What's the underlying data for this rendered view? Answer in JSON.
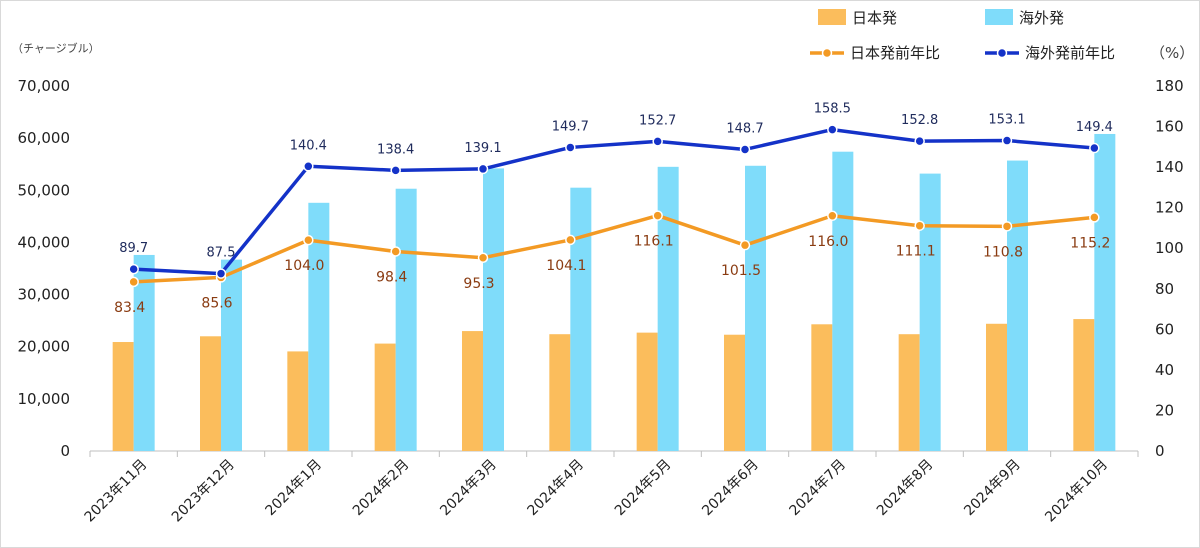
{
  "chart_data": {
    "type": "bar",
    "categories": [
      "2023年11月",
      "2023年12月",
      "2024年1月",
      "2024年2月",
      "2024年3月",
      "2024年4月",
      "2024年5月",
      "2024年6月",
      "2024年7月",
      "2024年8月",
      "2024年9月",
      "2024年10月"
    ],
    "left_axis": {
      "unit": "（チャージブル）",
      "ylim": [
        0,
        70000
      ],
      "ticks": [
        "0",
        "10,000",
        "20,000",
        "30,000",
        "40,000",
        "50,000",
        "60,000",
        "70,000"
      ],
      "tick_values": [
        0,
        10000,
        20000,
        30000,
        40000,
        50000,
        60000,
        70000
      ]
    },
    "right_axis": {
      "unit": "（%）",
      "ylim": [
        0,
        180
      ],
      "ticks": [
        "0",
        "20",
        "40",
        "60",
        "80",
        "100",
        "120",
        "140",
        "160",
        "180"
      ],
      "tick_values": [
        0,
        20,
        40,
        60,
        80,
        100,
        120,
        140,
        160,
        180
      ]
    },
    "series": [
      {
        "name": "日本発",
        "kind": "bar",
        "axis": "left",
        "color": "#fbbd5c",
        "values": [
          20900,
          22000,
          19100,
          20600,
          23000,
          22400,
          22700,
          22300,
          24300,
          22400,
          24400,
          25300
        ]
      },
      {
        "name": "海外発",
        "kind": "bar",
        "axis": "left",
        "color": "#7fdcfa",
        "values": [
          37600,
          36700,
          47600,
          50300,
          54200,
          50500,
          54500,
          54700,
          57400,
          53200,
          55700,
          60800
        ]
      },
      {
        "name": "日本発前年比",
        "kind": "line",
        "axis": "right",
        "color": "#f39a24",
        "label_color": "#8a3c12",
        "values": [
          83.4,
          85.6,
          104.0,
          98.4,
          95.3,
          104.1,
          116.1,
          101.5,
          116.0,
          111.1,
          110.8,
          115.2
        ],
        "labels": [
          "83.4",
          "85.6",
          "104.0",
          "98.4",
          "95.3",
          "104.1",
          "116.1",
          "101.5",
          "116.0",
          "111.1",
          "110.8",
          "115.2"
        ]
      },
      {
        "name": "海外発前年比",
        "kind": "line",
        "axis": "right",
        "color": "#1432c8",
        "label_color": "#1f2b5c",
        "values": [
          89.7,
          87.5,
          140.4,
          138.4,
          139.1,
          149.7,
          152.7,
          148.7,
          158.5,
          152.8,
          153.1,
          149.4
        ],
        "labels": [
          "89.7",
          "87.5",
          "140.4",
          "138.4",
          "139.1",
          "149.7",
          "152.7",
          "148.7",
          "158.5",
          "152.8",
          "153.1",
          "149.4"
        ]
      }
    ],
    "legend_placement": "top-right",
    "grid": false
  }
}
